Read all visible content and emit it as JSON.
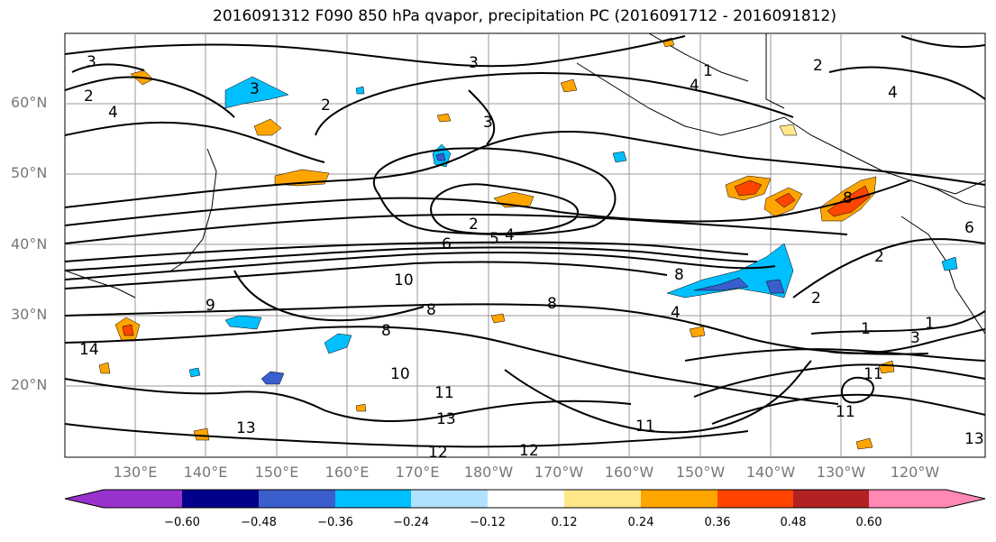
{
  "title": "2016091312 F090 850 hPa qvapor, precipitation PC (2016091712 - 2016091812)",
  "lat_labels": [
    "60°N",
    "50°N",
    "40°N",
    "30°N",
    "20°N"
  ],
  "lon_labels": [
    "130°E",
    "140°E",
    "150°E",
    "160°E",
    "170°E",
    "180°W",
    "170°W",
    "160°W",
    "150°W",
    "140°W",
    "130°W",
    "120°W"
  ],
  "contour_labels": [
    "3",
    "2",
    "4",
    "3",
    "2",
    "3",
    "3",
    "1",
    "4",
    "2",
    "4",
    "2",
    "6",
    "5",
    "4",
    "10",
    "8",
    "8",
    "8",
    "9",
    "8",
    "14",
    "10",
    "11",
    "13",
    "12",
    "12",
    "13",
    "11",
    "11",
    "13",
    "1",
    "3",
    "11",
    "2",
    "1",
    "2",
    "6",
    "8",
    "4"
  ],
  "colorbar": {
    "ticks": [
      "−0.60",
      "−0.48",
      "−0.36",
      "−0.24",
      "−0.12",
      "0.12",
      "0.24",
      "0.36",
      "0.48",
      "0.60"
    ],
    "colors": [
      "#9932cc",
      "#00008b",
      "#3a5fcd",
      "#00bfff",
      "#b0e2ff",
      "#ffffff",
      "#ffe78a",
      "#ffa500",
      "#ff4500",
      "#b22222",
      "#ff88b4"
    ]
  }
}
